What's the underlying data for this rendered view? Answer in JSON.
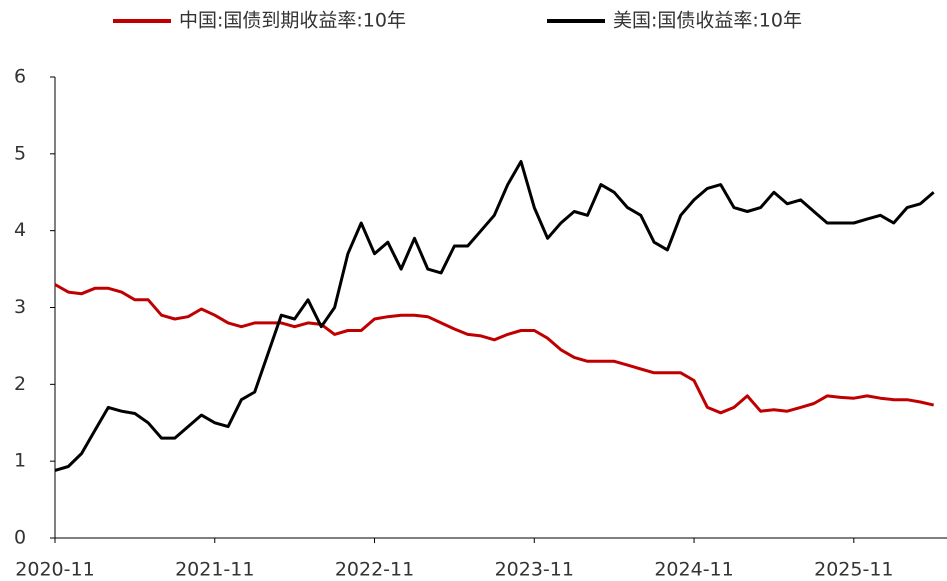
{
  "chart_data": {
    "type": "line",
    "x": [
      "2020-11",
      "2020-12",
      "2021-01",
      "2021-02",
      "2021-03",
      "2021-04",
      "2021-05",
      "2021-06",
      "2021-07",
      "2021-08",
      "2021-09",
      "2021-10",
      "2021-11",
      "2021-12",
      "2022-01",
      "2022-02",
      "2022-03",
      "2022-04",
      "2022-05",
      "2022-06",
      "2022-07",
      "2022-08",
      "2022-09",
      "2022-10",
      "2022-11",
      "2022-12",
      "2023-01",
      "2023-02",
      "2023-03",
      "2023-04",
      "2023-05",
      "2023-06",
      "2023-07",
      "2023-08",
      "2023-09",
      "2023-10",
      "2023-11",
      "2023-12",
      "2024-01",
      "2024-02",
      "2024-03",
      "2024-04",
      "2024-05",
      "2024-06",
      "2024-07",
      "2024-08",
      "2024-09",
      "2024-10",
      "2024-11",
      "2024-12",
      "2025-01",
      "2025-02",
      "2025-03",
      "2025-04",
      "2025-05",
      "2025-06",
      "2025-07",
      "2025-08",
      "2025-09",
      "2025-10",
      "2025-11",
      "2025-12",
      "2026-01",
      "2026-02",
      "2026-03",
      "2026-04",
      "2026-05"
    ],
    "series": [
      {
        "name": "中国:国债到期收益率:10年",
        "color": "#c00000",
        "values": [
          3.3,
          3.2,
          3.18,
          3.25,
          3.25,
          3.2,
          3.1,
          3.1,
          2.9,
          2.85,
          2.88,
          2.98,
          2.9,
          2.8,
          2.75,
          2.8,
          2.8,
          2.8,
          2.75,
          2.8,
          2.78,
          2.65,
          2.7,
          2.7,
          2.85,
          2.88,
          2.9,
          2.9,
          2.88,
          2.8,
          2.72,
          2.65,
          2.63,
          2.58,
          2.65,
          2.7,
          2.7,
          2.6,
          2.45,
          2.35,
          2.3,
          2.3,
          2.3,
          2.25,
          2.2,
          2.15,
          2.15,
          2.15,
          2.05,
          1.7,
          1.63,
          1.7,
          1.85,
          1.65,
          1.67,
          1.65,
          1.7,
          1.75,
          1.85,
          1.83,
          1.82,
          1.85,
          1.82,
          1.8,
          1.8,
          1.77,
          1.73
        ]
      },
      {
        "name": "美国:国债收益率:10年",
        "color": "#000000",
        "values": [
          0.88,
          0.93,
          1.1,
          1.4,
          1.7,
          1.65,
          1.62,
          1.5,
          1.3,
          1.3,
          1.45,
          1.6,
          1.5,
          1.45,
          1.8,
          1.9,
          2.4,
          2.9,
          2.85,
          3.1,
          2.75,
          3.0,
          3.7,
          4.1,
          3.7,
          3.85,
          3.5,
          3.9,
          3.5,
          3.45,
          3.8,
          3.8,
          4.0,
          4.2,
          4.6,
          4.9,
          4.3,
          3.9,
          4.1,
          4.25,
          4.2,
          4.6,
          4.5,
          4.3,
          4.2,
          3.85,
          3.75,
          4.2,
          4.4,
          4.55,
          4.6,
          4.3,
          4.25,
          4.3,
          4.5,
          4.35,
          4.4,
          4.25,
          4.1,
          4.1,
          4.1,
          4.15,
          4.2,
          4.1,
          4.3,
          4.35,
          4.5
        ]
      }
    ],
    "xlim": [
      "2020-11",
      "2026-06"
    ],
    "xticks": [
      "2020-11",
      "2021-11",
      "2022-11",
      "2023-11",
      "2024-11",
      "2025-11"
    ],
    "ylim": [
      0,
      6
    ],
    "yticks": [
      0,
      1,
      2,
      3,
      4,
      5,
      6
    ],
    "legend": "top"
  }
}
